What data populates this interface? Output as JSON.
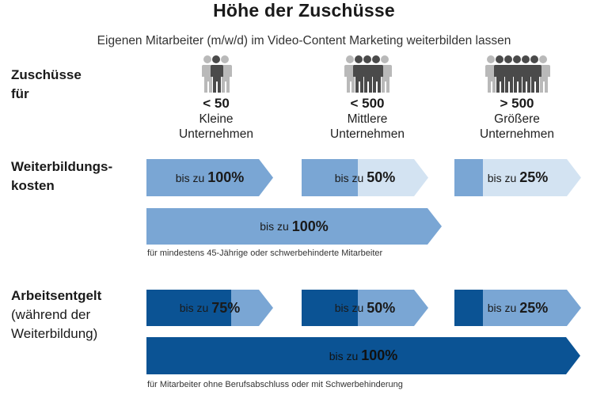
{
  "title": "Höhe der Zuschüsse",
  "subtitle": "Eigenen Mitarbeiter (m/w/d) im Video-Content Marketing weiterbilden lassen",
  "row_labels": {
    "zuschuesse": [
      "Zuschüsse",
      "für"
    ],
    "weiterbildung": [
      "Weiterbildungs-",
      "kosten"
    ],
    "arbeitsentgelt": [
      "Arbeitsentgelt",
      "(während der",
      "Weiterbildung)"
    ]
  },
  "company_sizes": [
    {
      "num": "< 50",
      "line1": "Kleine",
      "line2": "Unternehmen",
      "people": 3
    },
    {
      "num": "< 500",
      "line1": "Mittlere",
      "line2": "Unternehmen",
      "people": 5
    },
    {
      "num": "> 500",
      "line1": "Größere",
      "line2": "Unternehmen",
      "people": 7
    }
  ],
  "prefix": "bis zu",
  "weiterbildung": {
    "values": [
      "100%",
      "50%",
      "25%"
    ],
    "shares": [
      1.0,
      0.5,
      0.25
    ],
    "full_value": "100%",
    "note": "für mindestens 45-Jährige oder schwerbehinderte Mitarbeiter"
  },
  "arbeitsentgelt": {
    "values": [
      "75%",
      "50%",
      "25%"
    ],
    "shares": [
      0.75,
      0.5,
      0.25
    ],
    "full_value": "100%",
    "note": "für  Mitarbeiter ohne Berufsabschluss oder mit Schwerbehinderung"
  },
  "colors": {
    "wb_fill": "#7aa6d4",
    "wb_empty": "#d3e3f2",
    "ae_fill": "#0b5394",
    "ae_empty": "#7aa6d4"
  }
}
